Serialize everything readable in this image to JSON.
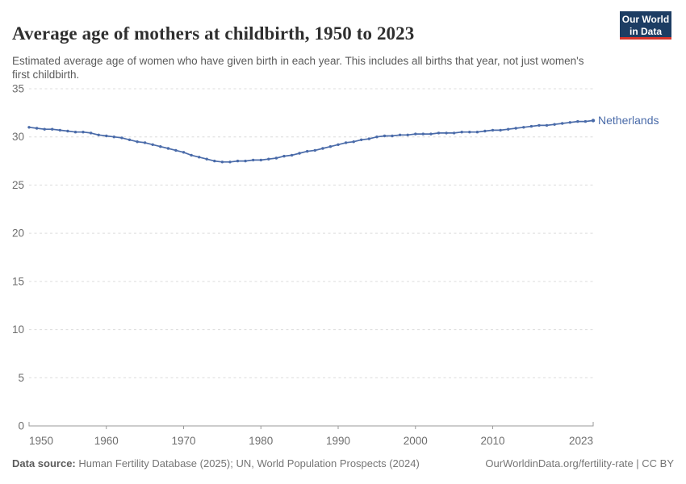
{
  "header": {
    "title": "Average age of mothers at childbirth, 1950 to 2023",
    "subtitle": "Estimated average age of women who have given birth in each year. This includes all births that year, not just women's first childbirth.",
    "logo_line1": "Our World",
    "logo_line2": "in Data"
  },
  "chart_data": {
    "type": "line",
    "title": "Average age of mothers at childbirth, 1950 to 2023",
    "xlabel": "",
    "ylabel": "",
    "xlim": [
      1950,
      2023
    ],
    "ylim": [
      0,
      35
    ],
    "yticks": [
      0,
      5,
      10,
      15,
      20,
      25,
      30,
      35
    ],
    "xticks": [
      1950,
      1960,
      1970,
      1980,
      1990,
      2000,
      2010,
      2023
    ],
    "grid": "horizontal-dashed",
    "legend_position": "end-of-line-label",
    "series": [
      {
        "name": "Netherlands",
        "color": "#4a6ba9",
        "x": [
          1950,
          1951,
          1952,
          1953,
          1954,
          1955,
          1956,
          1957,
          1958,
          1959,
          1960,
          1961,
          1962,
          1963,
          1964,
          1965,
          1966,
          1967,
          1968,
          1969,
          1970,
          1971,
          1972,
          1973,
          1974,
          1975,
          1976,
          1977,
          1978,
          1979,
          1980,
          1981,
          1982,
          1983,
          1984,
          1985,
          1986,
          1987,
          1988,
          1989,
          1990,
          1991,
          1992,
          1993,
          1994,
          1995,
          1996,
          1997,
          1998,
          1999,
          2000,
          2001,
          2002,
          2003,
          2004,
          2005,
          2006,
          2007,
          2008,
          2009,
          2010,
          2011,
          2012,
          2013,
          2014,
          2015,
          2016,
          2017,
          2018,
          2019,
          2020,
          2021,
          2022,
          2023
        ],
        "values": [
          31.0,
          30.9,
          30.8,
          30.8,
          30.7,
          30.6,
          30.5,
          30.5,
          30.4,
          30.2,
          30.1,
          30.0,
          29.9,
          29.7,
          29.5,
          29.4,
          29.2,
          29.0,
          28.8,
          28.6,
          28.4,
          28.1,
          27.9,
          27.7,
          27.5,
          27.4,
          27.4,
          27.5,
          27.5,
          27.6,
          27.6,
          27.7,
          27.8,
          28.0,
          28.1,
          28.3,
          28.5,
          28.6,
          28.8,
          29.0,
          29.2,
          29.4,
          29.5,
          29.7,
          29.8,
          30.0,
          30.1,
          30.1,
          30.2,
          30.2,
          30.3,
          30.3,
          30.3,
          30.4,
          30.4,
          30.4,
          30.5,
          30.5,
          30.5,
          30.6,
          30.7,
          30.7,
          30.8,
          30.9,
          31.0,
          31.1,
          31.2,
          31.2,
          31.3,
          31.4,
          31.5,
          31.6,
          31.6,
          31.7
        ]
      }
    ]
  },
  "footer": {
    "source_label": "Data source:",
    "source_text": " Human Fertility Database (2025); UN, World Population Prospects (2024)",
    "link": "OurWorldinData.org/fertility-rate | CC BY"
  },
  "colors": {
    "accent_line": "#4a6ba9",
    "logo_navy": "#1d3d63",
    "logo_red": "#d7352b",
    "grid": "#dcdcdc",
    "axis": "#9a9a9a",
    "tick_text": "#6e6e6e",
    "title_text": "#2f2f2f",
    "muted_text": "#5b5b5b"
  }
}
